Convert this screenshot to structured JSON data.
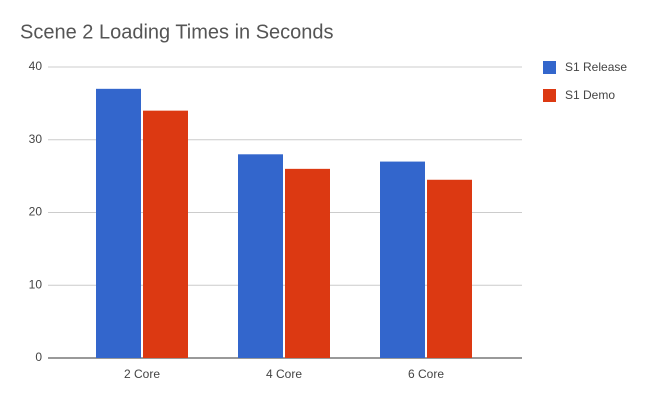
{
  "chart_data": {
    "type": "bar",
    "title": "Scene 2 Loading Times in Seconds",
    "categories": [
      "2 Core",
      "4 Core",
      "6 Core"
    ],
    "series": [
      {
        "name": "S1 Release",
        "color": "#3366cc",
        "values": [
          37,
          28,
          27
        ]
      },
      {
        "name": "S1 Demo",
        "color": "#dc3912",
        "values": [
          34,
          26,
          24.5
        ]
      }
    ],
    "ylim": [
      0,
      40
    ],
    "yticks": [
      0,
      10,
      20,
      30,
      40
    ],
    "grid": true,
    "legend": "right"
  }
}
